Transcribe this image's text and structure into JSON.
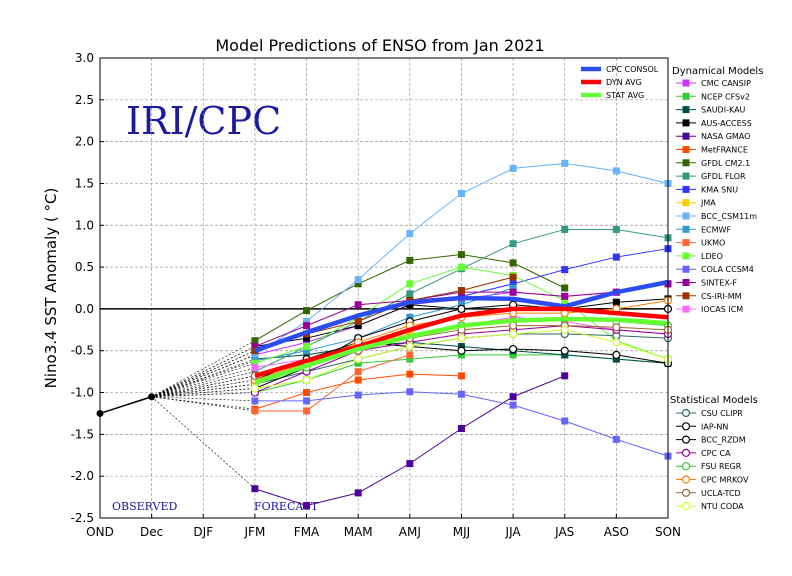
{
  "chart_data": {
    "type": "line",
    "title": "Model Predictions of ENSO from Jan 2021",
    "ylabel": "Nino3.4 SST Anomaly ( °C)",
    "xlabel": "",
    "watermark": "IRI/CPC",
    "observed_label": "OBSERVED",
    "forecast_label": "FORECAST",
    "categories": [
      "OND",
      "Dec",
      "DJF",
      "JFM",
      "FMA",
      "MAM",
      "AMJ",
      "MJJ",
      "JJA",
      "JAS",
      "ASO",
      "SON"
    ],
    "ylim": [
      -2.5,
      3.0
    ],
    "yticks": [
      "-2.5",
      "-2.0",
      "-1.5",
      "-1.0",
      "-0.5",
      "0.0",
      "0.5",
      "1.0",
      "1.5",
      "2.0",
      "2.5",
      "3.0"
    ],
    "grid": true,
    "observed": {
      "x": [
        0,
        1
      ],
      "values": [
        -1.25,
        -1.05
      ],
      "color": "#000000"
    },
    "consensus": [
      {
        "name": "CPC CONSOL",
        "color": "#2b4cf0",
        "values": [
          -0.5,
          -0.28,
          -0.08,
          0.08,
          0.13,
          0.12,
          0.03,
          0.2,
          0.32
        ]
      },
      {
        "name": "DYN AVG",
        "color": "#ff0000",
        "values": [
          -0.8,
          -0.62,
          -0.45,
          -0.25,
          -0.08,
          0.0,
          0.0,
          -0.05,
          -0.1
        ]
      },
      {
        "name": "STAT AVG",
        "color": "#66ff33",
        "values": [
          -0.88,
          -0.68,
          -0.48,
          -0.33,
          -0.2,
          -0.14,
          -0.12,
          -0.13,
          -0.17
        ]
      }
    ],
    "dynamical_title": "Dynamical Models",
    "dynamical": [
      {
        "name": "CMC CANSIP",
        "color": "#cc33ff",
        "values": [
          -0.55,
          -0.4,
          -0.2,
          0.05,
          0.12,
          0.2,
          0.15,
          0.2,
          0.3
        ]
      },
      {
        "name": "NCEP CFSv2",
        "color": "#33cc33",
        "values": [
          -1.0,
          -0.85,
          -0.65,
          -0.6,
          -0.55,
          -0.55,
          -0.55,
          -0.6,
          -0.65
        ]
      },
      {
        "name": "SAUDI-KAU",
        "color": "#004d4d",
        "values": [
          -0.6,
          -0.55,
          -0.45,
          -0.4,
          -0.45,
          -0.5,
          -0.55,
          -0.6,
          -0.65
        ]
      },
      {
        "name": "AUS-ACCESS",
        "color": "#000000",
        "values": [
          -0.45,
          -0.35,
          -0.2,
          0.05,
          0.0,
          0.0,
          0.0,
          0.08,
          0.12
        ]
      },
      {
        "name": "NASA GMAO",
        "color": "#4d0099",
        "values": [
          -2.15,
          -2.35,
          -2.2,
          -1.85,
          -1.43,
          -1.05,
          -0.8,
          null,
          null
        ]
      },
      {
        "name": "MetFRANCE",
        "color": "#ff4d00",
        "values": [
          -1.2,
          -1.0,
          -0.85,
          -0.78,
          -0.8,
          null,
          null,
          null,
          null
        ]
      },
      {
        "name": "GFDL CM2.1",
        "color": "#336600",
        "values": [
          -0.38,
          -0.02,
          0.3,
          0.58,
          0.65,
          0.55,
          0.25,
          null,
          null
        ]
      },
      {
        "name": "GFDL FLOR",
        "color": "#339980",
        "values": [
          -0.75,
          -0.45,
          -0.15,
          0.18,
          0.48,
          0.78,
          0.95,
          0.95,
          0.85
        ]
      },
      {
        "name": "KMA SNU",
        "color": "#3333ff",
        "values": [
          -0.5,
          -0.3,
          -0.1,
          0.1,
          0.15,
          0.3,
          0.47,
          0.62,
          0.72
        ]
      },
      {
        "name": "JMA",
        "color": "#ffcc00",
        "values": [
          -0.8,
          -0.6,
          -0.45,
          -0.3,
          -0.2,
          -0.15,
          null,
          null,
          null
        ]
      },
      {
        "name": "BCC_CSM11m",
        "color": "#66b3ff",
        "values": [
          -0.55,
          -0.15,
          0.35,
          0.9,
          1.38,
          1.68,
          1.74,
          1.65,
          1.5
        ]
      },
      {
        "name": "ECMWF",
        "color": "#3399cc",
        "values": [
          -0.62,
          -0.5,
          -0.35,
          -0.1,
          0.05,
          0.25,
          null,
          null,
          null
        ]
      },
      {
        "name": "UKMO",
        "color": "#ff6633",
        "values": [
          -1.22,
          -1.22,
          -0.75,
          -0.55,
          null,
          null,
          null,
          null,
          null
        ]
      },
      {
        "name": "LDEO",
        "color": "#66ff33",
        "values": [
          -0.65,
          -0.45,
          -0.1,
          0.3,
          0.5,
          0.4,
          0.1,
          -0.38,
          -0.6
        ]
      },
      {
        "name": "COLA CCSM4",
        "color": "#6666ff",
        "values": [
          -1.1,
          -1.1,
          -1.03,
          -0.99,
          -1.02,
          -1.15,
          -1.34,
          -1.56,
          -1.76
        ]
      },
      {
        "name": "SINTEX-F",
        "color": "#990099",
        "values": [
          -0.45,
          -0.2,
          0.05,
          0.1,
          0.2,
          0.2,
          0.15,
          0.2,
          0.3
        ]
      },
      {
        "name": "CS-IRI-MM",
        "color": "#993300",
        "values": [
          -0.5,
          -0.3,
          -0.15,
          0.1,
          0.22,
          0.38,
          null,
          null,
          null
        ]
      },
      {
        "name": "IOCAS ICM",
        "color": "#ff66ff",
        "values": [
          -0.7,
          -0.6,
          -0.5,
          -0.35,
          -0.2,
          -0.1,
          -0.15,
          -0.25,
          -0.3
        ]
      }
    ],
    "statistical_title": "Statistical Models",
    "statistical": [
      {
        "name": "CSU CLIPR",
        "color": "#336666",
        "values": [
          -0.9,
          -0.75,
          -0.6,
          -0.45,
          -0.35,
          -0.3,
          -0.3,
          -0.32,
          -0.35
        ]
      },
      {
        "name": "IAP-NN",
        "color": "#000000",
        "values": [
          -0.85,
          -0.6,
          -0.4,
          -0.45,
          -0.5,
          -0.48,
          -0.5,
          -0.55,
          -0.65
        ]
      },
      {
        "name": "BCC_RZDM",
        "color": "#000000",
        "values": [
          -0.95,
          -0.7,
          -0.35,
          -0.15,
          0.0,
          0.05,
          0.0,
          0.0,
          0.0
        ]
      },
      {
        "name": "CPC CA",
        "color": "#990099",
        "values": [
          -1.0,
          -0.75,
          -0.5,
          -0.4,
          -0.3,
          -0.25,
          -0.2,
          -0.25,
          -0.3
        ]
      },
      {
        "name": "FSU REGR",
        "color": "#33cc33",
        "values": [
          -0.9,
          -0.7,
          -0.5,
          -0.35,
          -0.2,
          -0.15,
          -0.12,
          -0.15,
          -0.2
        ]
      },
      {
        "name": "CPC MRKOV",
        "color": "#ff8000",
        "values": [
          -0.85,
          -0.65,
          -0.4,
          -0.2,
          -0.1,
          -0.05,
          -0.05,
          0.0,
          0.1
        ]
      },
      {
        "name": "UCLA-TCD",
        "color": "#996633",
        "values": [
          -0.8,
          -0.65,
          -0.5,
          -0.35,
          -0.25,
          -0.2,
          -0.2,
          -0.22,
          -0.25
        ]
      },
      {
        "name": "NTU CODA",
        "color": "#ccff33",
        "values": [
          -0.95,
          -0.85,
          -0.6,
          -0.45,
          -0.35,
          -0.3,
          -0.25,
          -0.4,
          -0.6
        ]
      }
    ]
  }
}
